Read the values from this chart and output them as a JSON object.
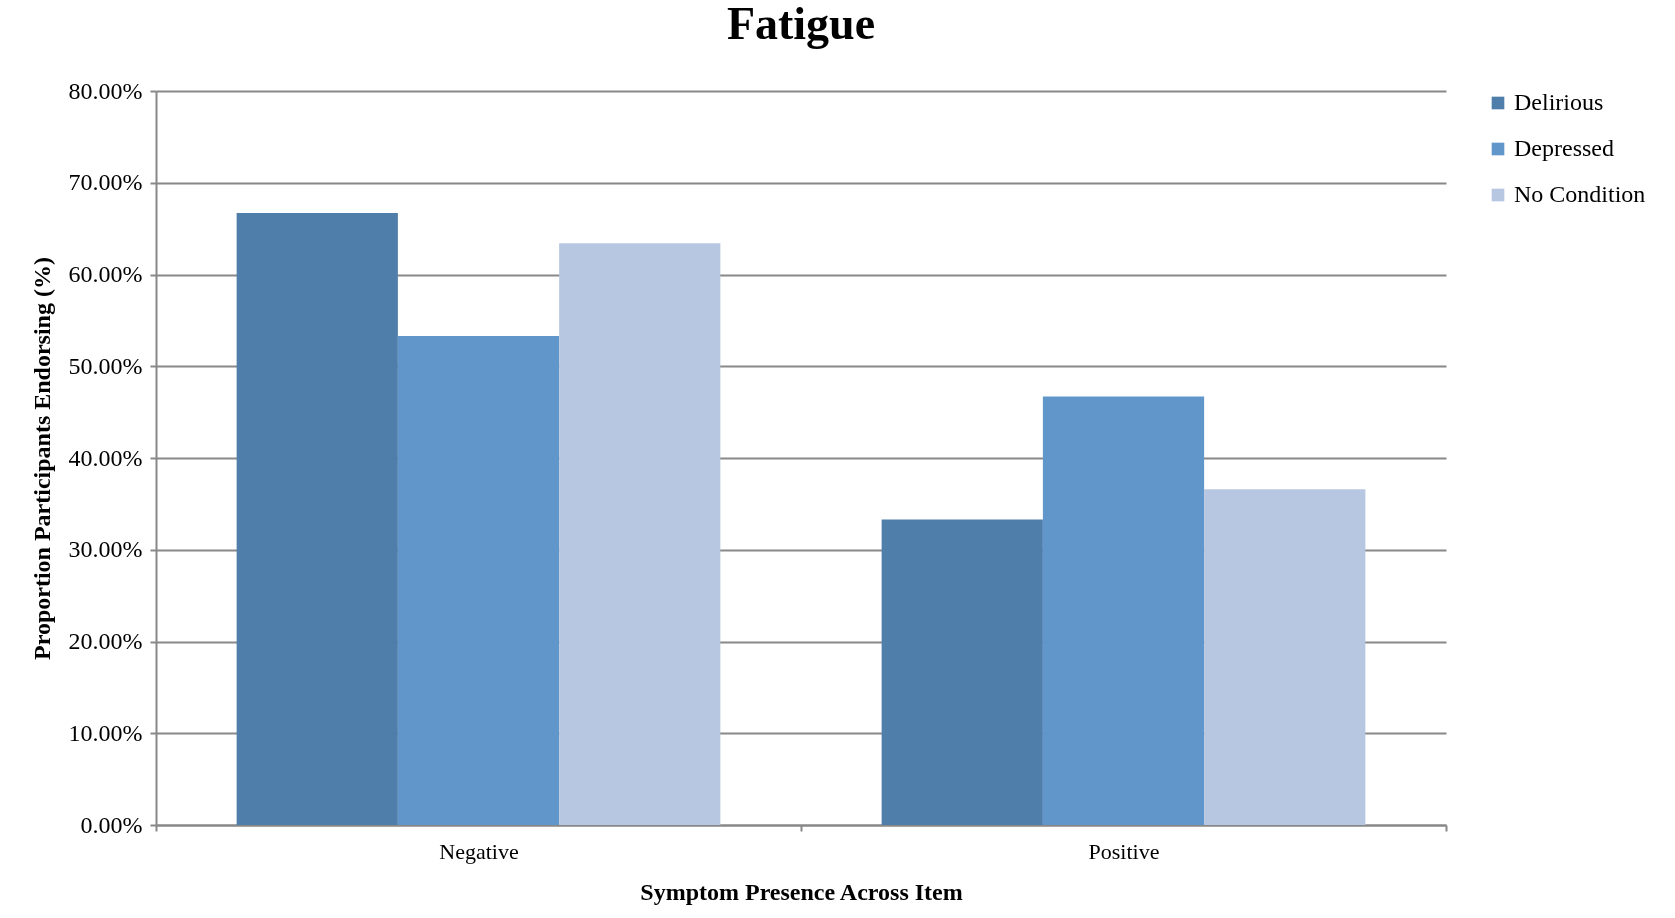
{
  "chart_data": {
    "type": "bar",
    "title": "Fatigue",
    "xlabel": "Symptom Presence Across Item",
    "ylabel": "Proportion Participants Endorsing (%)",
    "categories": [
      "Negative",
      "Positive"
    ],
    "series": [
      {
        "name": "Delirious",
        "color": "#4f7eab",
        "values": [
          66.7,
          33.3
        ]
      },
      {
        "name": "Depressed",
        "color": "#6096c9",
        "values": [
          53.3,
          46.7
        ]
      },
      {
        "name": "No Condition",
        "color": "#b8c7e1",
        "values": [
          63.4,
          36.6
        ]
      }
    ],
    "ylim": [
      0,
      80
    ],
    "yticks": [
      {
        "value": 0,
        "label": "0.00%"
      },
      {
        "value": 10,
        "label": "10.00%"
      },
      {
        "value": 20,
        "label": "20.00%"
      },
      {
        "value": 30,
        "label": "30.00%"
      },
      {
        "value": 40,
        "label": "40.00%"
      },
      {
        "value": 50,
        "label": "50.00%"
      },
      {
        "value": 60,
        "label": "60.00%"
      },
      {
        "value": 70,
        "label": "70.00%"
      },
      {
        "value": 80,
        "label": "80.00%"
      }
    ],
    "grid": "y",
    "legend": "right"
  }
}
